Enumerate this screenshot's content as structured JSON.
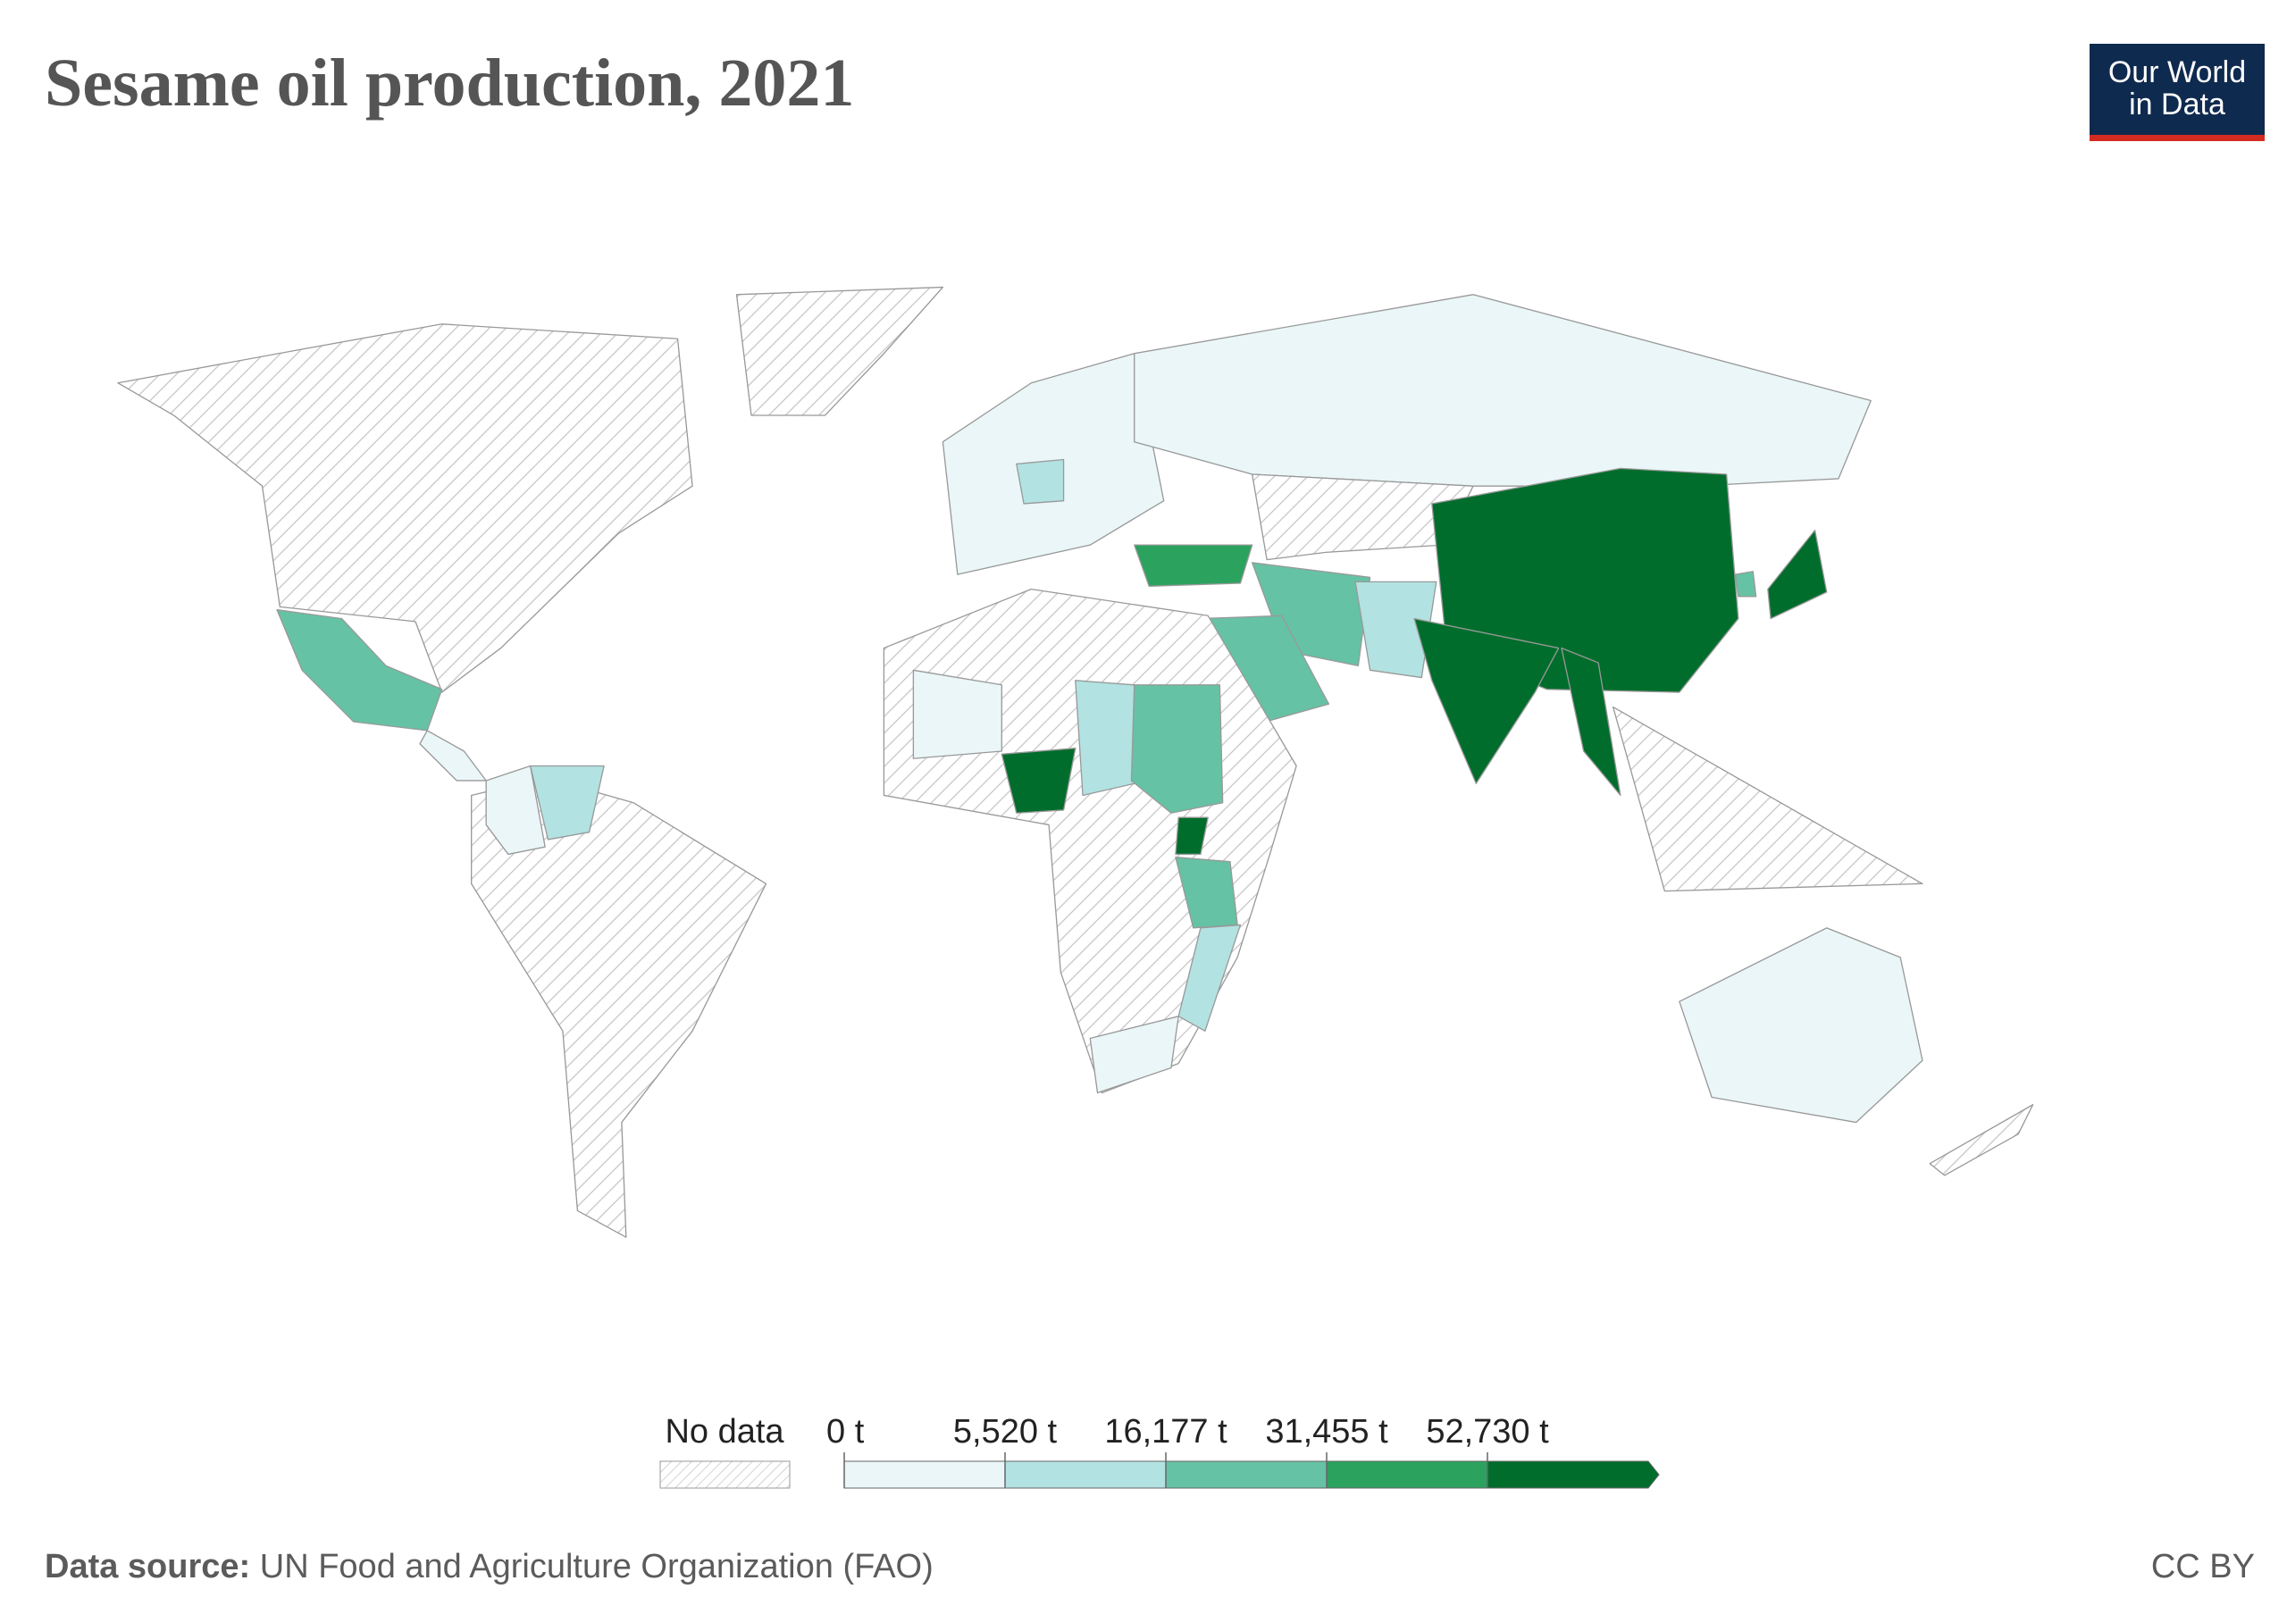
{
  "header": {
    "title": "Sesame oil production, 2021",
    "logo": [
      "Our World",
      "in Data"
    ]
  },
  "legend": {
    "no_data_label": "No data",
    "ticks": [
      {
        "value": 0,
        "label": "0 t"
      },
      {
        "value": 5520,
        "label": "5,520 t"
      },
      {
        "value": 16177,
        "label": "16,177 t"
      },
      {
        "value": 31455,
        "label": "31,455 t"
      },
      {
        "value": 52730,
        "label": "52,730 t"
      }
    ],
    "colors": [
      "#eaf6f7",
      "#b2e2e2",
      "#66c2a4",
      "#2ca25f",
      "#006d2c"
    ]
  },
  "footer": {
    "source_label": "Data source:",
    "source": "UN Food and Agriculture Organization (FAO)",
    "license": "CC BY"
  }
}
